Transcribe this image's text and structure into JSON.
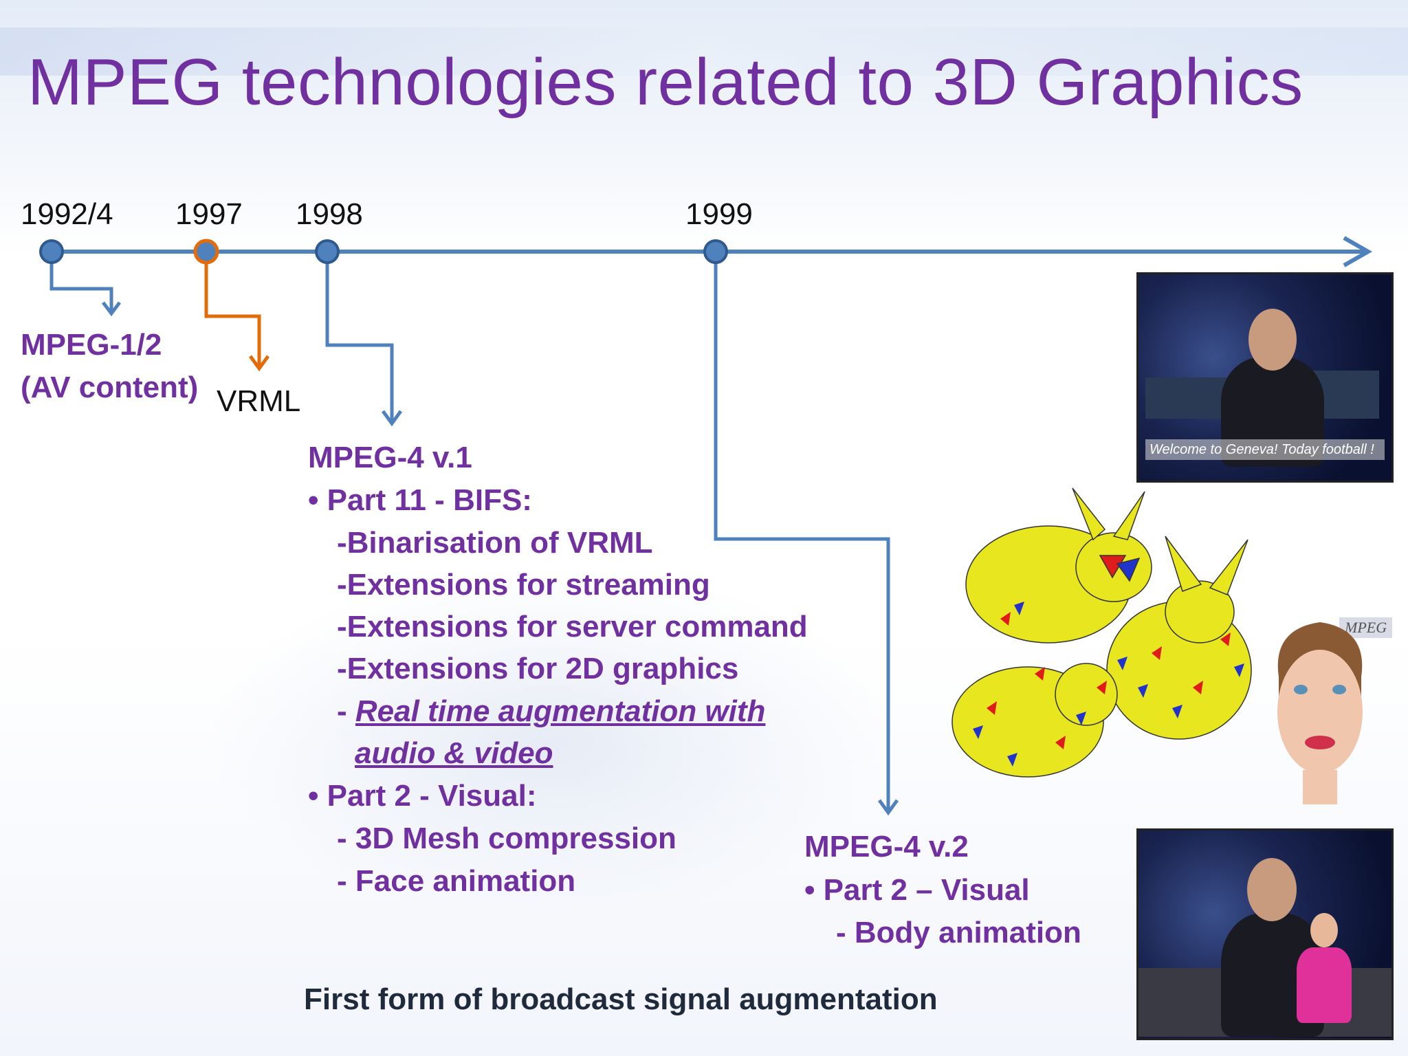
{
  "slide": {
    "title": "MPEG technologies related to 3D Graphics"
  },
  "timeline": {
    "years": [
      "1992/4",
      "1997",
      "1998",
      "1999"
    ],
    "line_color": "#4f81bd",
    "vrml_color": "#e36c09"
  },
  "mpeg12": {
    "line1": "MPEG-1/2",
    "line2": "(AV content)"
  },
  "vrml": {
    "label": "VRML"
  },
  "mpeg4v1": {
    "heading": "MPEG-4 v.1",
    "part11": "• Part 11 - BIFS:",
    "bifs_items": [
      "-Binarisation of VRML",
      "-Extensions for streaming",
      "-Extensions for server command",
      "-Extensions for 2D graphics"
    ],
    "augment_dash": "- ",
    "augment_line1": "Real time augmentation with ",
    "augment_line2": "audio & video",
    "part2": "• Part 2 - Visual:",
    "visual_items": [
      "- 3D Mesh compression",
      "- Face animation"
    ]
  },
  "mpeg4v2": {
    "heading": "MPEG-4 v.2",
    "part2": "• Part 2 – Visual",
    "item": "- Body animation"
  },
  "footer_note": "First form of broadcast signal augmentation",
  "images": {
    "newscast_top_caption": "Welcome to Geneva! Today football !",
    "mpeg_logo": "MPEG"
  },
  "colors": {
    "title": "#7030a0",
    "body_text": "#7030a0",
    "bunny": "#e8e61e"
  }
}
